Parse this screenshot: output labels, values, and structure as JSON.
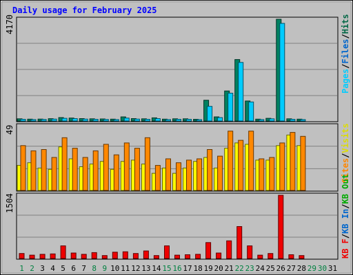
{
  "chart_data": [
    {
      "type": "bar",
      "title": "Daily usage for February 2025",
      "ymax_label": "4170",
      "y_max": 4170,
      "series_labels": [
        "Pages",
        "Files",
        "Hits"
      ],
      "series_colors": {
        "Pages": "#00ccff",
        "Files": "#0066cc",
        "Hits": "#006644"
      },
      "categories": [
        "1",
        "2",
        "3",
        "4",
        "5",
        "6",
        "7",
        "8",
        "9",
        "10",
        "11",
        "12",
        "13",
        "14",
        "15",
        "16",
        "17",
        "18",
        "19",
        "20",
        "21",
        "22",
        "23",
        "24",
        "25",
        "26",
        "27",
        "28",
        "29",
        "30",
        "31"
      ],
      "series": [
        {
          "name": "Hits",
          "values": [
            90,
            75,
            80,
            95,
            140,
            120,
            100,
            90,
            85,
            75,
            170,
            100,
            90,
            130,
            75,
            90,
            90,
            70,
            850,
            170,
            1230,
            2520,
            820,
            75,
            110,
            4170,
            90,
            75,
            null,
            null,
            null
          ]
        },
        {
          "name": "Pages",
          "values": [
            70,
            60,
            65,
            80,
            110,
            100,
            80,
            70,
            65,
            60,
            120,
            80,
            70,
            100,
            60,
            70,
            70,
            55,
            600,
            140,
            1140,
            2400,
            780,
            60,
            90,
            4000,
            70,
            60,
            null,
            null,
            null
          ]
        }
      ]
    },
    {
      "type": "bar",
      "ymax_label": "49",
      "y_max": 49,
      "series_labels": [
        "Visits",
        "Sites"
      ],
      "series_colors": {
        "Visits": "#ffff00",
        "Sites": "#ff8800"
      },
      "categories": [
        "1",
        "2",
        "3",
        "4",
        "5",
        "6",
        "7",
        "8",
        "9",
        "10",
        "11",
        "12",
        "13",
        "14",
        "15",
        "16",
        "17",
        "18",
        "19",
        "20",
        "21",
        "22",
        "23",
        "24",
        "25",
        "26",
        "27",
        "28",
        "29",
        "30",
        "31"
      ],
      "series": [
        {
          "name": "Visits",
          "values": [
            19,
            21,
            17,
            16,
            33,
            24,
            18,
            20,
            22,
            16,
            22,
            23,
            20,
            13,
            17,
            13,
            17,
            22,
            25,
            17,
            32,
            36,
            35,
            23,
            23,
            34,
            42,
            34,
            null,
            null,
            null
          ]
        },
        {
          "name": "Sites",
          "values": [
            34,
            30,
            31,
            25,
            40,
            32,
            25,
            30,
            35,
            27,
            36,
            32,
            40,
            19,
            24,
            21,
            23,
            24,
            31,
            26,
            45,
            38,
            45,
            24,
            25,
            36,
            44,
            41,
            null,
            null,
            null
          ]
        }
      ]
    },
    {
      "type": "bar",
      "ymax_label": "1504",
      "y_max": 1504,
      "series_labels": [
        "KB F",
        "KB In",
        "KB Out"
      ],
      "series_colors": {
        "KB F": "#ee0000",
        "KB In": "#0066cc",
        "KB Out": "#00aa00"
      },
      "categories": [
        "1",
        "2",
        "3",
        "4",
        "5",
        "6",
        "7",
        "8",
        "9",
        "10",
        "11",
        "12",
        "13",
        "14",
        "15",
        "16",
        "17",
        "18",
        "19",
        "20",
        "21",
        "22",
        "23",
        "24",
        "25",
        "26",
        "27",
        "28",
        "29",
        "30",
        "31"
      ],
      "series": [
        {
          "name": "KB F",
          "values": [
            120,
            80,
            100,
            110,
            300,
            130,
            100,
            140,
            70,
            150,
            160,
            120,
            180,
            70,
            300,
            80,
            90,
            100,
            380,
            130,
            420,
            760,
            300,
            80,
            120,
            1504,
            90,
            70,
            null,
            null,
            null
          ]
        }
      ]
    }
  ],
  "colors": {
    "background": "#c0c0c0",
    "frame": "#000000",
    "weekday_label": "#000000",
    "weekend_label": "#008040",
    "title_color": "#0000ff"
  },
  "weekend_days": [
    "1",
    "2",
    "8",
    "9",
    "15",
    "16",
    "22",
    "23",
    "29",
    "30"
  ]
}
